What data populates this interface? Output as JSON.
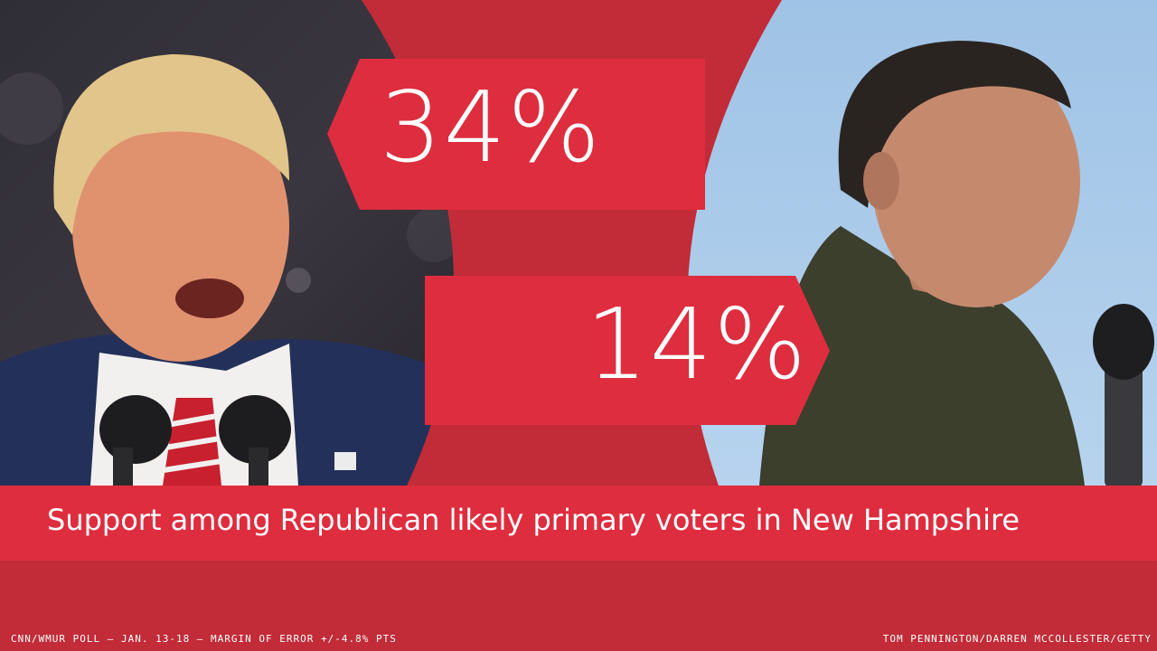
{
  "stats": {
    "first_percent": "34%",
    "second_percent": "14%"
  },
  "caption": "Support among Republican likely primary voters in New Hampshire",
  "footer": {
    "source": "CNN/WMUR POLL — JAN. 13-18 — MARGIN OF ERROR +/-4.8% PTS",
    "credit": "TOM PENNINGTON/DARREN MCCOLLESTER/GETTY"
  },
  "colors": {
    "background": "#c12c38",
    "accent_band": "#de2d3e",
    "left_photo_bg": "#2b2a33",
    "right_photo_sky": "#a6c8e8",
    "text": "#ffffff"
  },
  "icons": {
    "left_photo": "speaker-at-microphones-image",
    "right_photo": "speaker-with-microphone-image"
  }
}
